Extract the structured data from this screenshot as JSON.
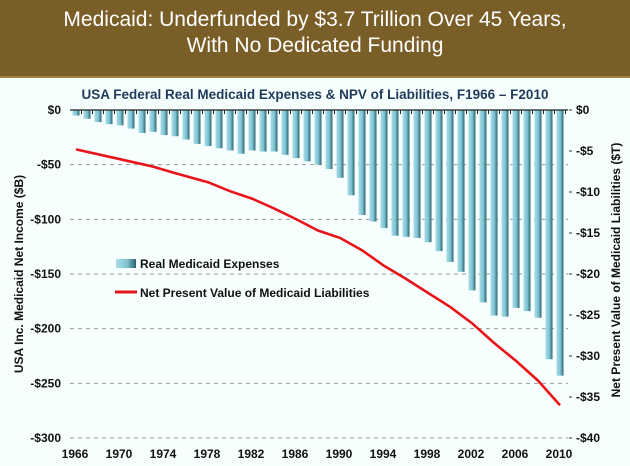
{
  "banner": {
    "line1": "Medicaid: Underfunded by $3.7 Trillion Over 45 Years,",
    "line2": "With No Dedicated Funding",
    "color": "#7a5e28"
  },
  "chart_data": {
    "type": "bar",
    "title": "USA Federal Real Medicaid Expenses & NPV of Liabilities, F1966 – F2010",
    "xlabel": "",
    "ylabel": "USA Inc. Medicaid Net Income ($B)",
    "y2label": "Net Present Value of Medicaid Liabilities ($T)",
    "ylim": [
      -300,
      0
    ],
    "y2lim": [
      -40,
      0
    ],
    "yticks": [
      "$0",
      "-$50",
      "-$100",
      "-$150",
      "-$200",
      "-$250",
      "-$300"
    ],
    "y2ticks": [
      "$0",
      "-$5",
      "-$10",
      "-$15",
      "-$20",
      "-$25",
      "-$30",
      "-$35",
      "-$40"
    ],
    "xticks": [
      "1966",
      "1970",
      "1974",
      "1978",
      "1982",
      "1986",
      "1990",
      "1994",
      "1998",
      "2002",
      "2006",
      "2010"
    ],
    "grid": "horizontal-dashed",
    "legend_position": "center-left",
    "x": [
      1966,
      1967,
      1968,
      1969,
      1970,
      1971,
      1972,
      1973,
      1974,
      1975,
      1976,
      1977,
      1978,
      1979,
      1980,
      1981,
      1982,
      1983,
      1984,
      1985,
      1986,
      1987,
      1988,
      1989,
      1990,
      1991,
      1992,
      1993,
      1994,
      1995,
      1996,
      1997,
      1998,
      1999,
      2000,
      2001,
      2002,
      2003,
      2004,
      2005,
      2006,
      2007,
      2008,
      2009,
      2010
    ],
    "series": [
      {
        "name": "Real Medicaid Expenses",
        "type": "bar",
        "axis": "left",
        "color": "#8cc9d6",
        "values": [
          -5,
          -8,
          -11,
          -13,
          -14,
          -17,
          -21,
          -20,
          -23,
          -24,
          -27,
          -31,
          -33,
          -35,
          -37,
          -40,
          -37,
          -38,
          -38,
          -41,
          -44,
          -47,
          -50,
          -54,
          -62,
          -78,
          -96,
          -102,
          -108,
          -115,
          -116,
          -117,
          -121,
          -129,
          -139,
          -148,
          -165,
          -176,
          -188,
          -189,
          -181,
          -184,
          -190,
          -228,
          -243
        ]
      },
      {
        "name": "Net Present Value of Medicaid Liabilities",
        "type": "line",
        "axis": "right",
        "color": "#e8141a",
        "x": [
          1966,
          1970,
          1973,
          1975,
          1978,
          1980,
          1982,
          1984,
          1986,
          1988,
          1990,
          1992,
          1994,
          1996,
          1998,
          2000,
          2002,
          2004,
          2006,
          2008,
          2010
        ],
        "values": [
          -4.8,
          -6.0,
          -6.9,
          -7.7,
          -8.8,
          -9.9,
          -10.8,
          -12.0,
          -13.3,
          -14.7,
          -15.6,
          -17.1,
          -19.0,
          -20.6,
          -22.3,
          -24.0,
          -26.0,
          -28.4,
          -30.6,
          -33.0,
          -36.0
        ]
      }
    ]
  }
}
